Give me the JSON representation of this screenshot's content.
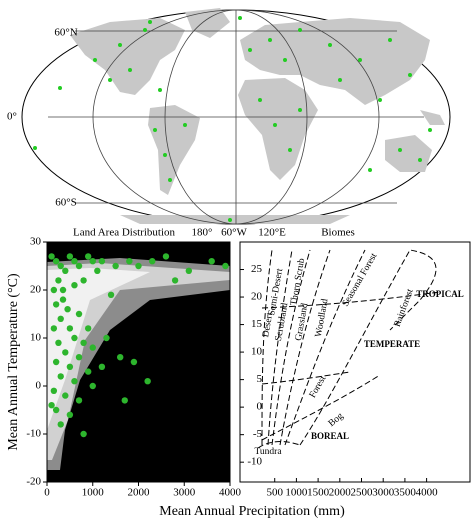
{
  "map": {
    "lat_labels": [
      "60°N",
      "0°",
      "60°S"
    ],
    "lon_labels": [
      "180°",
      "60°W",
      "120°E"
    ]
  },
  "chart_data": [
    {
      "type": "scatter",
      "title": "Land Area Distribution",
      "xlabel": "Mean Annual Precipitation (mm)",
      "ylabel": "Mean Annual Temperature (°C)",
      "xlim": [
        0,
        4000
      ],
      "ylim": [
        -20,
        30
      ],
      "xticks": [
        0,
        1000,
        2000,
        3000,
        4000
      ],
      "yticks": [
        -20,
        -10,
        0,
        10,
        20,
        30
      ],
      "color": "#2db52d",
      "x": [
        100,
        200,
        300,
        250,
        150,
        400,
        500,
        600,
        700,
        900,
        1000,
        1200,
        1500,
        1800,
        2300,
        2600,
        3100,
        3600,
        3900,
        2000,
        1100,
        800,
        600,
        350,
        200,
        450,
        700,
        300,
        150,
        500,
        900,
        600,
        250,
        800,
        400,
        1000,
        1300,
        700,
        200,
        500,
        900,
        1200,
        1600,
        1900,
        300,
        600,
        1000,
        2200,
        150,
        400,
        700,
        200,
        500,
        300,
        100,
        800,
        1700,
        350,
        1400,
        2800
      ],
      "values": [
        27,
        26,
        25,
        22,
        20,
        24,
        27,
        26,
        25,
        27,
        26,
        26,
        25,
        26,
        26,
        27,
        24,
        26,
        25,
        25,
        24,
        22,
        21,
        18,
        17,
        16,
        15,
        14,
        12,
        12,
        12,
        10,
        9,
        9,
        7,
        8,
        10,
        6,
        5,
        4,
        3,
        4,
        6,
        5,
        2,
        1,
        0,
        1,
        -1,
        -2,
        -3,
        -5,
        -6,
        -8,
        -4,
        -10,
        -3,
        20,
        19,
        22
      ]
    },
    {
      "type": "biome",
      "title": "Biomes",
      "xlim": [
        -300,
        5000
      ],
      "ylim": [
        -13.6,
        30
      ],
      "xticks": [
        500,
        1000,
        1500,
        2000,
        2500,
        3000,
        3500,
        4000
      ],
      "yticks": [
        -10,
        -5,
        0,
        5,
        10,
        15,
        20,
        25
      ],
      "labels": [
        "Desert",
        "Semi-Desert",
        "Thorn Scrub",
        "Scrubland",
        "Grassland",
        "Woodland",
        "Seasonal Forest",
        "Rainforest",
        "TROPICAL",
        "TEMPERATE",
        "Forest",
        "Bog",
        "BOREAL",
        "Tundra"
      ]
    }
  ]
}
